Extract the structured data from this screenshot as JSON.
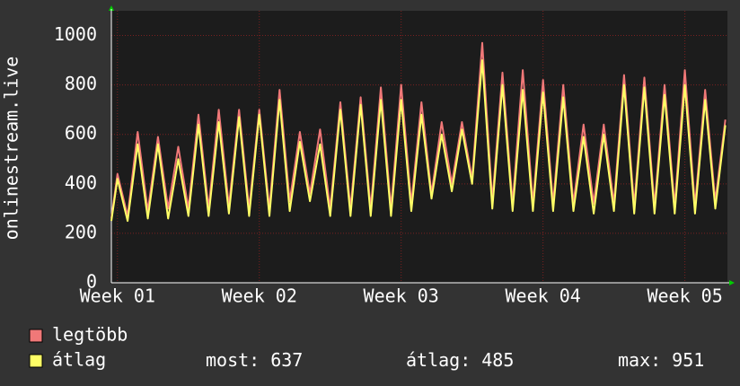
{
  "chart_data": {
    "type": "line",
    "ylabel": "onlinestream.live",
    "x": [
      -0.3,
      0,
      0.5,
      1,
      1.5,
      2,
      2.5,
      3,
      3.5,
      4,
      4.5,
      5,
      5.5,
      6,
      6.5,
      7,
      7.5,
      8,
      8.5,
      9,
      9.5,
      10,
      10.5,
      11,
      11.5,
      12,
      12.5,
      13,
      13.5,
      14,
      14.5,
      15,
      15.5,
      16,
      16.5,
      17,
      17.5,
      18,
      18.5,
      19,
      19.5,
      20,
      20.5,
      21,
      21.5,
      22,
      22.5,
      23,
      23.5,
      24,
      24.5,
      25,
      25.5,
      26,
      26.5,
      27,
      27.5,
      28,
      28.5,
      29,
      29.5,
      30
    ],
    "series": [
      {
        "name": "legtöbb",
        "color": "#f07878",
        "values": [
          260,
          440,
          270,
          610,
          290,
          590,
          300,
          550,
          300,
          680,
          300,
          700,
          310,
          700,
          300,
          700,
          300,
          780,
          330,
          610,
          360,
          620,
          300,
          730,
          300,
          750,
          300,
          790,
          300,
          800,
          320,
          730,
          360,
          650,
          400,
          650,
          420,
          970,
          330,
          850,
          320,
          860,
          320,
          820,
          320,
          800,
          320,
          640,
          320,
          640,
          320,
          840,
          310,
          830,
          310,
          800,
          310,
          860,
          310,
          780,
          330,
          660
        ]
      },
      {
        "name": "átlag",
        "color": "#ffff66",
        "values": [
          250,
          420,
          250,
          560,
          260,
          560,
          260,
          500,
          270,
          640,
          270,
          650,
          280,
          670,
          270,
          680,
          270,
          740,
          290,
          570,
          330,
          560,
          270,
          700,
          270,
          720,
          270,
          740,
          270,
          740,
          290,
          680,
          340,
          600,
          370,
          620,
          400,
          900,
          300,
          800,
          290,
          780,
          290,
          770,
          290,
          750,
          290,
          590,
          280,
          600,
          290,
          800,
          280,
          790,
          280,
          760,
          280,
          800,
          280,
          740,
          300,
          637
        ]
      }
    ],
    "xlim": [
      -0.3,
      30.1
    ],
    "xticks": [
      {
        "value": 0,
        "label": "Week 01"
      },
      {
        "value": 7,
        "label": "Week 02"
      },
      {
        "value": 14,
        "label": "Week 03"
      },
      {
        "value": 21,
        "label": "Week 04"
      },
      {
        "value": 28,
        "label": "Week 05"
      }
    ],
    "ylim": [
      0,
      1100
    ],
    "yticks": [
      0,
      200,
      400,
      600,
      800,
      1000
    ],
    "grid": true,
    "stats": [
      {
        "label": "most:",
        "value": 637
      },
      {
        "label": "átlag:",
        "value": 485
      },
      {
        "label": "max:",
        "value": 951
      }
    ]
  }
}
